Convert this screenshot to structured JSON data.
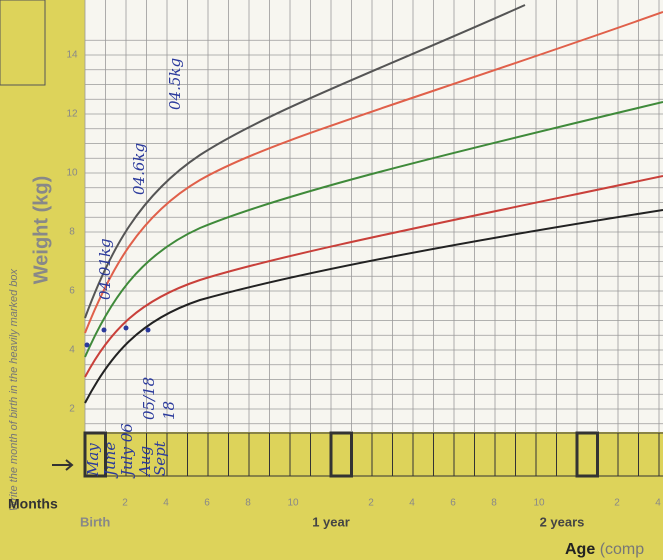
{
  "chart_header": {
    "y_title": "Weight (kg)",
    "y_ticks": [
      14,
      12,
      10,
      8,
      6,
      4,
      2
    ]
  },
  "note": "Write the month of birth in the heavily marked box",
  "months_label": "Months",
  "month_ticks": [
    "2",
    "4",
    "6",
    "8",
    "10",
    "2",
    "4",
    "6",
    "8",
    "10",
    "2",
    "4"
  ],
  "age_marks": [
    "Birth",
    "1 year",
    "2 years"
  ],
  "age_title": "Age",
  "age_title_rest": "(comp",
  "handwriting": {
    "months": [
      "May",
      "June",
      "July 06",
      "Aug",
      "Sept"
    ],
    "date": "05/18",
    "year": "18",
    "weights": [
      "04.01kg",
      "04.6kg",
      "04.5kg"
    ]
  }
}
